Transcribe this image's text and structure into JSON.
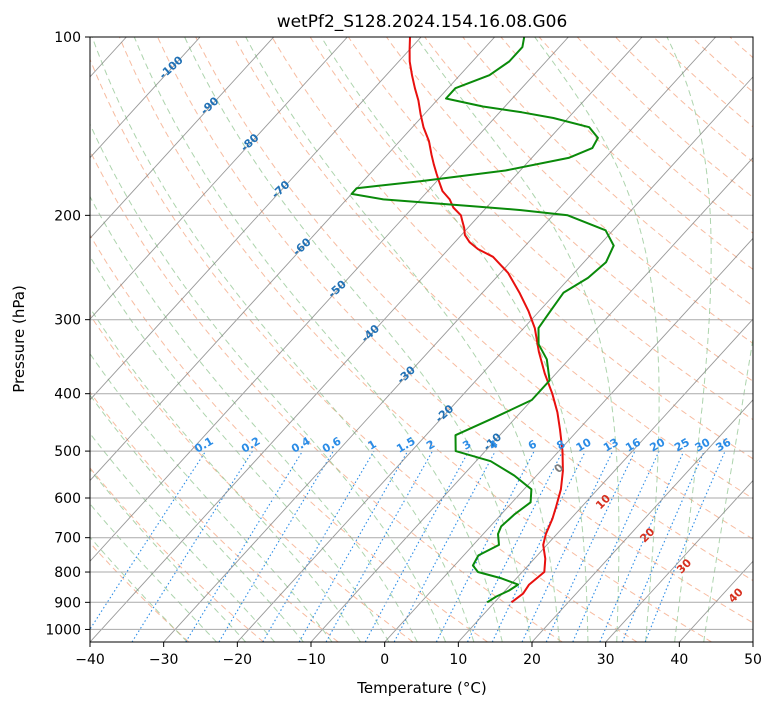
{
  "chart_data": {
    "type": "line",
    "title": "wetPf2_S128.2024.154.16.08.G06",
    "xlabel": "Temperature (°C)",
    "ylabel": "Pressure (hPa)",
    "xlim": [
      -40,
      50
    ],
    "ylim": [
      1050,
      100
    ],
    "y_scale": "log",
    "grid": true,
    "x_ticks": [
      "−40",
      "−30",
      "−20",
      "−10",
      "0",
      "10",
      "20",
      "30",
      "40",
      "50"
    ],
    "x_tick_values": [
      -40,
      -30,
      -20,
      -10,
      0,
      10,
      20,
      30,
      40,
      50
    ],
    "y_ticks": [
      "100",
      "200",
      "300",
      "400",
      "500",
      "600",
      "700",
      "800",
      "900",
      "1000"
    ],
    "y_tick_values": [
      100,
      200,
      300,
      400,
      500,
      600,
      700,
      800,
      900,
      1000
    ],
    "colors": {
      "temperature": "#e8100e",
      "dewpoint": "#0a8a0a",
      "isotherm": "#7f7f7f",
      "dry_adiabat": "#f4a582",
      "moist_adiabat": "#92c592",
      "mixing_ratio": "#2b8ce6",
      "isotherm_label": "#2171b5",
      "adiabat_label": "#d7301f"
    },
    "series": [
      {
        "id": "temperature",
        "pressure": [
          900,
          870,
          840,
          800,
          760,
          720,
          690,
          650,
          620,
          580,
          540,
          500,
          460,
          430,
          400,
          370,
          340,
          310,
          290,
          270,
          250,
          235,
          228,
          222,
          216,
          210,
          205,
          200,
          194,
          188,
          182,
          176,
          170,
          164,
          158,
          150,
          142,
          135,
          128,
          122,
          116,
          110,
          105,
          100
        ],
        "temperature": [
          12.3,
          12.8,
          12.5,
          13.0,
          11.5,
          9.5,
          8.5,
          7.5,
          6.5,
          5.0,
          3.0,
          0.5,
          -2.5,
          -5.0,
          -8.0,
          -11.5,
          -15.0,
          -18.5,
          -21.5,
          -25.0,
          -29.0,
          -33.0,
          -36.0,
          -38.0,
          -39.5,
          -40.5,
          -41.5,
          -42.5,
          -44.5,
          -46.0,
          -48.0,
          -49.5,
          -51.0,
          -52.5,
          -54.0,
          -56.0,
          -58.5,
          -60.5,
          -62.5,
          -64.5,
          -66.5,
          -68.5,
          -70.0,
          -71.5
        ]
      },
      {
        "id": "dewpoint",
        "pressure": [
          900,
          880,
          860,
          840,
          820,
          800,
          780,
          750,
          720,
          690,
          670,
          640,
          610,
          580,
          550,
          520,
          500,
          470,
          440,
          410,
          380,
          350,
          330,
          310,
          290,
          270,
          255,
          240,
          225,
          212,
          200,
          196,
          193,
          188,
          184,
          180,
          175,
          168,
          160,
          154,
          148,
          142,
          137,
          134,
          131,
          127,
          122,
          116,
          110,
          104,
          100
        ],
        "temperature": [
          9.0,
          9.5,
          10.5,
          11.0,
          8.0,
          4.0,
          2.5,
          2.0,
          3.5,
          2.0,
          1.5,
          1.8,
          2.5,
          1.0,
          -3.0,
          -8.0,
          -14.0,
          -16.0,
          -13.0,
          -10.0,
          -10.0,
          -13.0,
          -16.0,
          -18.0,
          -18.5,
          -19.0,
          -17.5,
          -17.0,
          -18.0,
          -21.0,
          -28.0,
          -35.0,
          -42.0,
          -55.0,
          -60.0,
          -60.0,
          -52.0,
          -42.0,
          -35.0,
          -33.0,
          -33.5,
          -36.0,
          -42.0,
          -47.0,
          -53.0,
          -59.0,
          -59.0,
          -56.0,
          -55.0,
          -55.0,
          -56.0
        ]
      }
    ],
    "isotherm_labels": [
      "-100",
      "-90",
      "-80",
      "-70",
      "-60",
      "-50",
      "-40",
      "-30",
      "-20",
      "-10"
    ],
    "mixing_ratio_labels": [
      "0.1",
      "0.2",
      "0.4",
      "0.6",
      "1",
      "1.5",
      "2",
      "3",
      "4",
      "6",
      "8",
      "10",
      "13",
      "16",
      "20",
      "25",
      "30",
      "36"
    ],
    "adiabat_labels": [
      "0",
      "10",
      "20",
      "30",
      "40"
    ]
  }
}
